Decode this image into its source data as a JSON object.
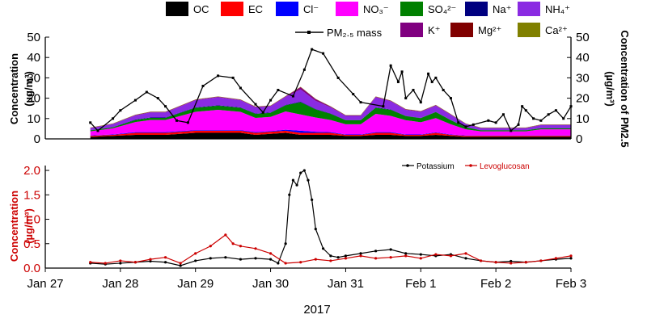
{
  "chart_data": [
    {
      "type": "area",
      "stacked": true,
      "ylabel_left_line1": "Concentration",
      "ylabel_left_line2": "(µg/m³)",
      "ylabel_right_line1": "Concentration of PM2.5",
      "ylabel_right_line2": "(µg/m³)",
      "ylim": [
        0,
        50
      ],
      "yticks": [
        "0",
        "10",
        "20",
        "30",
        "40",
        "50"
      ],
      "yticks_right": [
        "0",
        "10",
        "20",
        "30",
        "40",
        "50"
      ],
      "xlim": [
        0,
        7
      ],
      "legend_items": [
        {
          "label": "OC",
          "color": "#000000"
        },
        {
          "label": "EC",
          "color": "#ff0000"
        },
        {
          "label": "Cl⁻",
          "color": "#0000ff"
        },
        {
          "label": "NO₃⁻",
          "color": "#ff00ff"
        },
        {
          "label": "SO₄²⁻",
          "color": "#008000"
        },
        {
          "label": "Na⁺",
          "color": "#000080"
        },
        {
          "label": "NH₄⁺",
          "color": "#8a2be2"
        },
        {
          "label": "K⁺",
          "color": "#800080"
        },
        {
          "label": "Mg²⁺",
          "color": "#800000"
        },
        {
          "label": "Ca²⁺",
          "color": "#808000"
        }
      ],
      "line_legend": {
        "label": "PM₂.₅ mass",
        "color": "#000000"
      },
      "x": [
        0.6,
        0.9,
        1.2,
        1.4,
        1.6,
        2.0,
        2.3,
        2.6,
        2.8,
        3.0,
        3.2,
        3.4,
        3.6,
        3.8,
        4.0,
        4.2,
        4.4,
        4.6,
        4.8,
        5.0,
        5.2,
        5.4,
        5.6,
        5.8,
        6.0,
        6.2,
        6.4,
        6.6,
        6.8,
        7.0
      ],
      "stack_series": [
        {
          "name": "OC",
          "color": "#000000",
          "values": [
            1,
            1.5,
            2,
            2,
            2,
            3,
            3,
            3,
            2,
            2.5,
            3,
            2,
            2,
            2,
            1.5,
            1.5,
            2,
            2,
            1.5,
            1.5,
            2,
            1.5,
            1,
            1,
            1,
            1,
            1,
            1,
            1,
            1
          ]
        },
        {
          "name": "EC",
          "color": "#ff0000",
          "values": [
            0.5,
            0.5,
            1,
            1,
            1,
            1,
            1,
            1,
            1,
            1,
            1,
            1,
            1,
            1,
            0.5,
            0.5,
            1,
            1,
            0.5,
            0.5,
            1,
            0.5,
            0.5,
            0.5,
            0.5,
            0.5,
            0.5,
            0.5,
            0.5,
            0.5
          ]
        },
        {
          "name": "Cl⁻",
          "color": "#0000ff",
          "values": [
            0.2,
            0.2,
            0.3,
            0.3,
            0.3,
            0.3,
            0.3,
            0.3,
            0.3,
            0.3,
            0.5,
            1,
            0.5,
            0.3,
            0.2,
            0.2,
            0.3,
            0.3,
            0.2,
            0.2,
            0.2,
            0.2,
            0.2,
            0.2,
            0.2,
            0.2,
            0.2,
            0.2,
            0.2,
            0.2
          ]
        },
        {
          "name": "NO₃⁻",
          "color": "#ff00ff",
          "values": [
            2,
            3,
            5,
            6,
            6,
            9,
            10,
            9,
            7,
            7,
            9,
            8,
            7,
            6,
            5,
            5,
            9,
            8,
            7,
            6,
            7,
            5,
            3,
            2,
            2,
            2,
            2,
            3,
            3,
            3
          ]
        },
        {
          "name": "SO₄²⁻",
          "color": "#008000",
          "values": [
            0.5,
            0.5,
            1,
            1,
            1,
            2,
            2,
            2,
            2,
            2,
            3,
            6,
            4,
            3,
            2,
            2,
            3,
            3,
            2,
            2,
            3,
            2,
            1,
            0.5,
            0.5,
            0.5,
            0.5,
            0.5,
            0.5,
            0.5
          ]
        },
        {
          "name": "Na⁺",
          "color": "#000080",
          "values": [
            0.1,
            0.1,
            0.2,
            0.2,
            0.2,
            0.2,
            0.2,
            0.2,
            0.2,
            0.2,
            0.2,
            0.3,
            0.2,
            0.2,
            0.1,
            0.1,
            0.2,
            0.2,
            0.1,
            0.1,
            0.1,
            0.1,
            0.1,
            0.1,
            0.1,
            0.1,
            0.1,
            0.1,
            0.1,
            0.1
          ]
        },
        {
          "name": "NH₄⁺",
          "color": "#8a2be2",
          "values": [
            1,
            1.5,
            2,
            2.5,
            2.5,
            3.5,
            4,
            3.5,
            3,
            3,
            4,
            6,
            4,
            3,
            2,
            2,
            5,
            4,
            3,
            3,
            3,
            2.5,
            1.5,
            1,
            1,
            1,
            1,
            1.5,
            1.5,
            1.5
          ]
        },
        {
          "name": "K⁺",
          "color": "#800080",
          "values": [
            0.1,
            0.1,
            0.2,
            0.2,
            0.2,
            0.2,
            0.2,
            0.2,
            0.2,
            0.2,
            0.2,
            1,
            0.8,
            0.3,
            0.2,
            0.2,
            0.2,
            0.2,
            0.2,
            0.2,
            0.2,
            0.2,
            0.1,
            0.1,
            0.1,
            0.1,
            0.1,
            0.1,
            0.1,
            0.1
          ]
        },
        {
          "name": "Mg²⁺",
          "color": "#800000",
          "values": [
            0.1,
            0.1,
            0.1,
            0.1,
            0.1,
            0.1,
            0.1,
            0.1,
            0.1,
            0.1,
            0.1,
            0.2,
            0.1,
            0.1,
            0.1,
            0.1,
            0.1,
            0.1,
            0.1,
            0.1,
            0.1,
            0.1,
            0.1,
            0.1,
            0.1,
            0.1,
            0.1,
            0.1,
            0.1,
            0.1
          ]
        },
        {
          "name": "Ca²⁺",
          "color": "#808000",
          "values": [
            0.1,
            0.1,
            0.1,
            0.1,
            0.1,
            0.1,
            0.1,
            0.1,
            0.1,
            0.1,
            0.1,
            0.1,
            0.1,
            0.1,
            0.1,
            0.1,
            0.1,
            0.1,
            0.1,
            0.1,
            0.1,
            0.1,
            0.1,
            0.1,
            0.1,
            0.1,
            0.1,
            0.1,
            0.1,
            0.1
          ]
        }
      ],
      "line_series": {
        "name": "PM₂.₅ mass",
        "color": "#000000",
        "x": [
          0.6,
          0.7,
          0.9,
          1.0,
          1.2,
          1.35,
          1.5,
          1.6,
          1.75,
          1.9,
          2.1,
          2.3,
          2.5,
          2.6,
          2.8,
          2.9,
          3.0,
          3.1,
          3.3,
          3.45,
          3.55,
          3.7,
          3.9,
          4.1,
          4.2,
          4.5,
          4.6,
          4.7,
          4.75,
          4.8,
          4.9,
          5.0,
          5.1,
          5.15,
          5.2,
          5.3,
          5.4,
          5.5,
          5.6,
          5.7,
          5.9,
          6.0,
          6.1,
          6.2,
          6.3,
          6.35,
          6.4,
          6.5,
          6.6,
          6.7,
          6.8,
          6.9,
          7.0
        ],
        "values": [
          8,
          4,
          10,
          14,
          19,
          23,
          20,
          16,
          9,
          8,
          26,
          31,
          30,
          25,
          17,
          13,
          19,
          24,
          21,
          34,
          44,
          42,
          30,
          22,
          18,
          16,
          36,
          28,
          33,
          20,
          24,
          18,
          32,
          28,
          30,
          24,
          20,
          8,
          6,
          7,
          9,
          8,
          12,
          4,
          7,
          16,
          14,
          10,
          9,
          12,
          14,
          10,
          16
        ]
      }
    },
    {
      "type": "line",
      "ylabel_line1": "Concentration",
      "ylabel_line2": "(µg/m³)",
      "ylim": [
        0,
        2.1
      ],
      "yticks": [
        "0.0",
        "0.5",
        "1.0",
        "1.5",
        "2.0"
      ],
      "xlabel": "2017",
      "xticks": [
        "Jan 27",
        "Jan 28",
        "Jan 29",
        "Jan 30",
        "Jan 31",
        "Feb 1",
        "Feb 2",
        "Feb 3"
      ],
      "xlim": [
        0,
        7
      ],
      "series": [
        {
          "name": "Potassium",
          "color": "#000000",
          "x": [
            0.6,
            0.8,
            1.0,
            1.2,
            1.4,
            1.6,
            1.8,
            2.0,
            2.2,
            2.4,
            2.6,
            2.8,
            3.0,
            3.1,
            3.2,
            3.25,
            3.3,
            3.35,
            3.4,
            3.45,
            3.5,
            3.55,
            3.6,
            3.7,
            3.8,
            3.9,
            4.0,
            4.2,
            4.4,
            4.6,
            4.8,
            5.0,
            5.2,
            5.4,
            5.6,
            5.8,
            6.0,
            6.2,
            6.4,
            6.6,
            6.8,
            7.0
          ],
          "values": [
            0.1,
            0.08,
            0.1,
            0.12,
            0.14,
            0.12,
            0.05,
            0.15,
            0.2,
            0.22,
            0.18,
            0.2,
            0.18,
            0.1,
            0.5,
            1.5,
            1.8,
            1.7,
            1.95,
            2.0,
            1.8,
            1.4,
            0.8,
            0.4,
            0.25,
            0.22,
            0.25,
            0.3,
            0.35,
            0.38,
            0.3,
            0.28,
            0.25,
            0.28,
            0.2,
            0.15,
            0.12,
            0.14,
            0.12,
            0.15,
            0.18,
            0.2
          ]
        },
        {
          "name": "Levoglucosan",
          "color": "#cc0000",
          "x": [
            0.6,
            0.8,
            1.0,
            1.2,
            1.4,
            1.6,
            1.8,
            2.0,
            2.2,
            2.4,
            2.5,
            2.6,
            2.8,
            3.0,
            3.2,
            3.4,
            3.6,
            3.8,
            4.0,
            4.2,
            4.4,
            4.6,
            4.8,
            5.0,
            5.2,
            5.4,
            5.6,
            5.8,
            6.0,
            6.2,
            6.4,
            6.6,
            6.8,
            7.0
          ],
          "values": [
            0.12,
            0.1,
            0.15,
            0.12,
            0.18,
            0.22,
            0.1,
            0.3,
            0.45,
            0.68,
            0.5,
            0.45,
            0.4,
            0.3,
            0.1,
            0.12,
            0.18,
            0.15,
            0.2,
            0.25,
            0.2,
            0.22,
            0.25,
            0.2,
            0.28,
            0.25,
            0.3,
            0.15,
            0.12,
            0.1,
            0.12,
            0.15,
            0.2,
            0.25
          ]
        }
      ]
    }
  ]
}
